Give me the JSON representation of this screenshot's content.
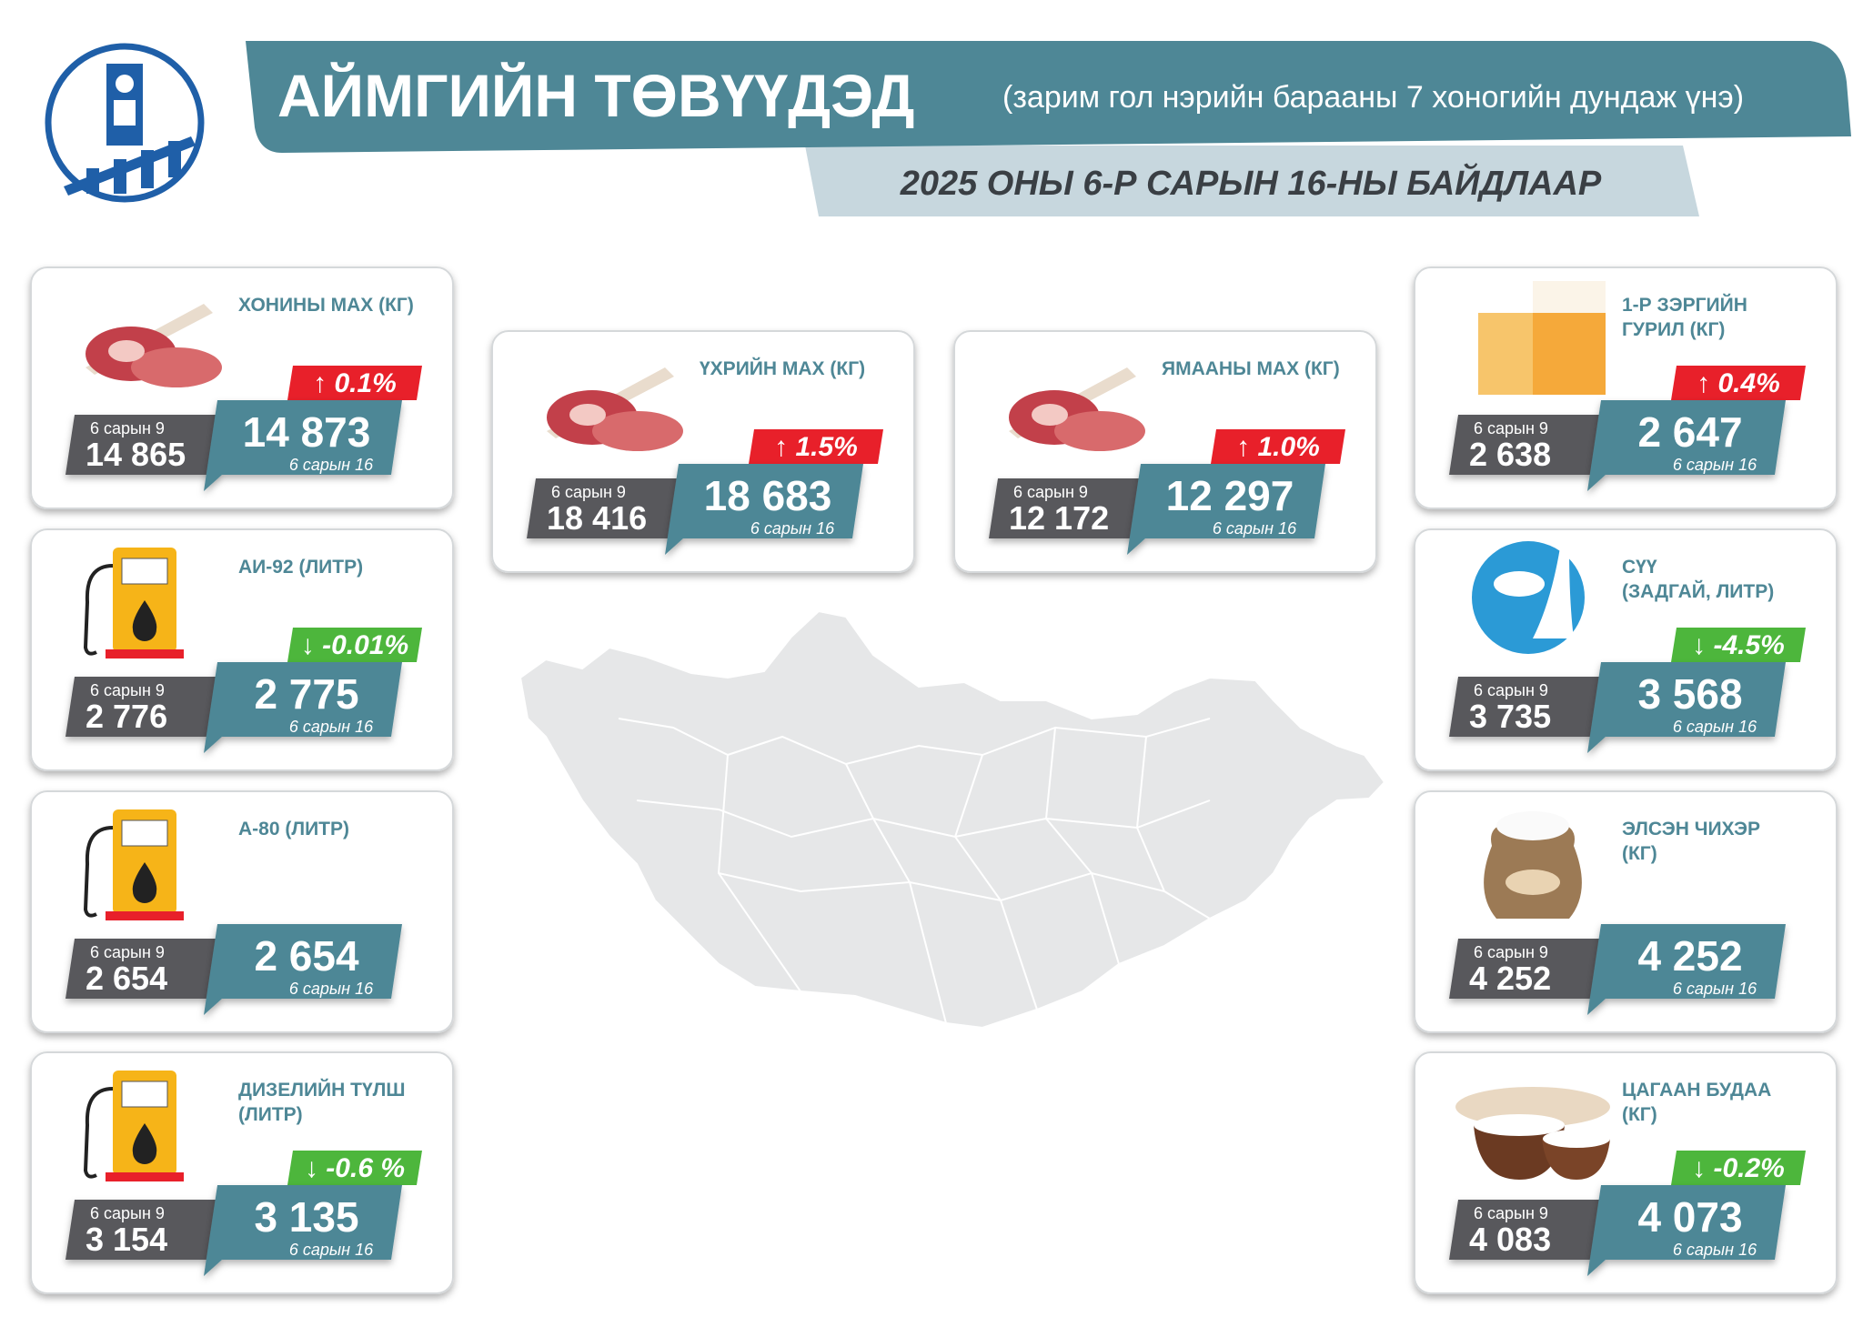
{
  "header": {
    "title": "АЙМГИЙН ТӨВҮҮДЭД",
    "subtitle": "(зарим гол нэрийн барааны 7 хоногийн дундаж үнэ)",
    "date": "2025 ОНЫ 6-Р САРЫН 16-НЫ БАЙДЛААР"
  },
  "cards": [
    {
      "icon": "meat",
      "name": [
        "ХОНИНЫ МАХ (КГ)"
      ],
      "change": "↑ 0.1%",
      "change_color": "#e8202a",
      "prev_label": "6 сарын 9",
      "prev": "14 865",
      "current": "14 873",
      "current_label": "6 сарын 16"
    },
    {
      "icon": "fuel",
      "name": [
        "АИ-92 (ЛИТР)"
      ],
      "change": "↓ -0.01%",
      "change_color": "#4db63c",
      "prev_label": "6 сарын 9",
      "prev": "2 776",
      "current": "2 775",
      "current_label": "6 сарын 16"
    },
    {
      "icon": "fuel",
      "name": [
        "А-80 (ЛИТР)"
      ],
      "prev_label": "6 сарын 9",
      "prev": "2 654",
      "current": "2 654",
      "current_label": "6 сарын 16"
    },
    {
      "icon": "fuel",
      "name": [
        "ДИЗЕЛИЙН ТҮЛШ",
        "(ЛИТР)"
      ],
      "change": "↓ -0.6 %",
      "change_color": "#4db63c",
      "prev_label": "6 сарын 9",
      "prev": "3 154",
      "current": "3 135",
      "current_label": "6 сарын 16"
    },
    {
      "icon": "meat",
      "name": [
        "ҮХРИЙН МАХ (КГ)"
      ],
      "change": "↑ 1.5%",
      "change_color": "#e8202a",
      "prev_label": "6 сарын 9",
      "prev": "18 416",
      "current": "18 683",
      "current_label": "6 сарын 16"
    },
    {
      "icon": "meat",
      "name": [
        "ЯМААНЫ МАХ (КГ)"
      ],
      "change": "↑ 1.0%",
      "change_color": "#e8202a",
      "prev_label": "6 сарын 9",
      "prev": "12 172",
      "current": "12 297",
      "current_label": "6 сарын 16"
    },
    {
      "icon": "flour",
      "name": [
        "1-Р ЗЭРГИЙН",
        "ГУРИЛ (КГ)"
      ],
      "change": "↑ 0.4%",
      "change_color": "#e8202a",
      "prev_label": "6 сарын 9",
      "prev": "2 638",
      "current": "2 647",
      "current_label": "6 сарын 16"
    },
    {
      "icon": "milk",
      "name": [
        "СҮҮ",
        "(ЗАДГАЙ, ЛИТР)"
      ],
      "change": "↓ -4.5%",
      "change_color": "#4db63c",
      "prev_label": "6 сарын 9",
      "prev": "3 735",
      "current": "3 568",
      "current_label": "6 сарын 16"
    },
    {
      "icon": "sugar",
      "name": [
        "ЭЛСЭН ЧИХЭР",
        " (КГ)"
      ],
      "prev_label": "6 сарын 9",
      "prev": "4 252",
      "current": "4 252",
      "current_label": "6 сарын 16"
    },
    {
      "icon": "rice",
      "name": [
        "ЦАГААН БУДАА",
        "(КГ)"
      ],
      "change": "↓ -0.2%",
      "change_color": "#4db63c",
      "prev_label": "6 сарын 9",
      "prev": "4 083",
      "current": "4 073",
      "current_label": "6 сарын 16"
    }
  ]
}
